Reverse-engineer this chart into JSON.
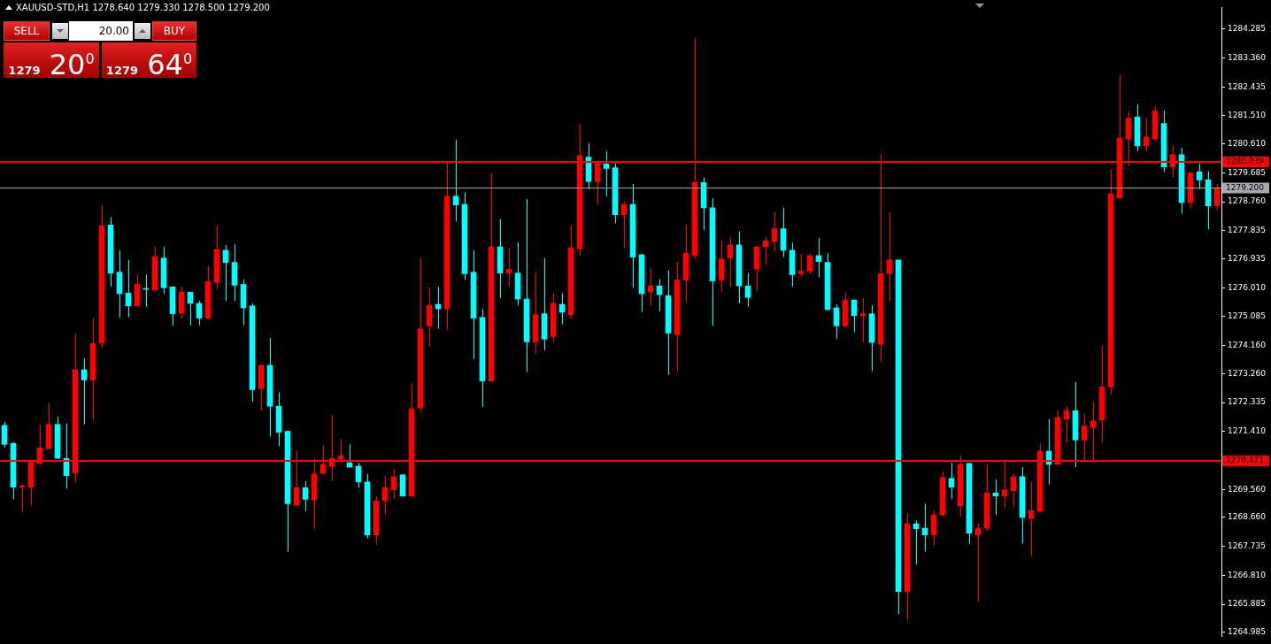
{
  "chart_data": {
    "type": "candlestick",
    "title": "XAUUSD-STD,H1  1278.640 1279.330 1278.500 1279.200",
    "annotations": [
      "SELL",
      "20.00",
      "BUY",
      "1279 20$^{0}$",
      "1279 64$^{0}$"
    ],
    "categories": [
      null,
      null,
      null,
      null,
      null,
      null,
      null,
      null,
      null,
      null,
      null,
      null,
      null,
      null,
      null,
      null,
      null,
      null,
      null,
      null,
      null,
      null,
      null,
      null,
      null,
      null,
      null,
      null,
      null,
      null,
      null,
      null,
      null,
      null,
      null,
      null,
      null,
      null,
      null,
      null,
      null,
      null,
      null,
      null,
      null,
      null,
      null,
      null,
      null,
      null,
      null,
      null,
      null,
      null,
      null,
      null,
      null,
      null,
      null,
      null,
      null,
      null,
      null,
      null,
      null,
      null,
      null,
      null,
      null,
      null,
      null,
      null,
      null,
      null,
      null,
      null,
      null,
      null,
      null,
      null,
      null,
      null,
      null,
      null,
      null,
      null,
      null,
      null,
      null,
      null,
      null,
      null,
      null,
      null,
      null,
      null,
      null,
      null,
      null,
      null,
      null,
      null,
      null,
      null,
      null,
      null,
      null,
      null,
      null,
      null,
      null,
      null,
      null,
      null,
      null,
      null,
      null,
      null,
      null,
      null,
      null,
      null,
      null,
      null,
      null,
      null,
      null,
      null,
      null,
      null,
      null,
      null,
      null,
      null,
      null,
      null,
      null,
      null
    ],
    "ohlc": [
      [
        1271.61,
        1271.72,
        1270.89,
        1271.0
      ],
      [
        1271.03,
        1271.08,
        1269.24,
        1269.63
      ],
      [
        1269.63,
        1269.74,
        1268.83,
        1269.66
      ],
      [
        1269.63,
        1270.5,
        1269.05,
        1270.44
      ],
      [
        1270.39,
        1271.64,
        1270.33,
        1270.89
      ],
      [
        1270.86,
        1272.33,
        1270.86,
        1271.64
      ],
      [
        1271.64,
        1271.89,
        1270.55,
        1270.55
      ],
      [
        1270.55,
        1271.67,
        1269.58,
        1270.0
      ],
      [
        1270.08,
        1274.53,
        1269.77,
        1273.39
      ],
      [
        1273.39,
        1273.75,
        1271.64,
        1273.06
      ],
      [
        1273.06,
        1275.06,
        1271.78,
        1274.23
      ],
      [
        1274.23,
        1278.66,
        1274.09,
        1277.99
      ],
      [
        1278.02,
        1278.27,
        1276.04,
        1276.48
      ],
      [
        1276.51,
        1277.21,
        1275.06,
        1275.82
      ],
      [
        1275.84,
        1276.9,
        1275.06,
        1275.43
      ],
      [
        1275.43,
        1276.43,
        1275.4,
        1276.12
      ],
      [
        1275.98,
        1276.43,
        1275.4,
        1275.96
      ],
      [
        1275.93,
        1277.32,
        1275.93,
        1277.01
      ],
      [
        1276.96,
        1277.32,
        1275.82,
        1276.01
      ],
      [
        1276.04,
        1276.04,
        1274.79,
        1275.18
      ],
      [
        1275.2,
        1276.04,
        1275.01,
        1275.87
      ],
      [
        1275.87,
        1275.87,
        1274.81,
        1275.51
      ],
      [
        1275.51,
        1275.59,
        1274.81,
        1275.04
      ],
      [
        1275.04,
        1276.71,
        1275.01,
        1276.21
      ],
      [
        1276.18,
        1278.02,
        1275.98,
        1277.24
      ],
      [
        1277.21,
        1277.38,
        1275.59,
        1276.82
      ],
      [
        1276.82,
        1277.4,
        1275.59,
        1276.09
      ],
      [
        1276.12,
        1276.29,
        1274.81,
        1275.37
      ],
      [
        1275.43,
        1275.51,
        1272.36,
        1272.75
      ],
      [
        1272.78,
        1273.53,
        1272.08,
        1273.53
      ],
      [
        1273.53,
        1274.4,
        1271.25,
        1272.22
      ],
      [
        1272.22,
        1272.67,
        1270.94,
        1271.39
      ],
      [
        1271.42,
        1271.42,
        1267.57,
        1269.1
      ],
      [
        1269.05,
        1270.8,
        1269.05,
        1269.61
      ],
      [
        1269.61,
        1269.83,
        1268.85,
        1269.24
      ],
      [
        1269.22,
        1270.55,
        1268.3,
        1270.05
      ],
      [
        1270.08,
        1270.97,
        1270.02,
        1270.36
      ],
      [
        1270.3,
        1271.94,
        1269.83,
        1270.55
      ],
      [
        1270.52,
        1271.16,
        1270.47,
        1270.64
      ],
      [
        1270.41,
        1271.0,
        1270.27,
        1270.27
      ],
      [
        1270.3,
        1270.41,
        1269.61,
        1269.8
      ],
      [
        1269.8,
        1270.05,
        1267.99,
        1268.1
      ],
      [
        1268.1,
        1269.35,
        1267.8,
        1269.19
      ],
      [
        1269.19,
        1270.0,
        1268.74,
        1269.61
      ],
      [
        1269.55,
        1270.22,
        1269.24,
        1269.97
      ],
      [
        1270.02,
        1270.05,
        1269.33,
        1269.35
      ],
      [
        1269.35,
        1272.95,
        1269.3,
        1272.14
      ],
      [
        1272.17,
        1276.96,
        1272.03,
        1274.7
      ],
      [
        1274.79,
        1276.01,
        1274.12,
        1275.45
      ],
      [
        1275.48,
        1276.04,
        1274.7,
        1275.34
      ],
      [
        1275.34,
        1280.1,
        1274.65,
        1278.94
      ],
      [
        1278.94,
        1280.75,
        1278.13,
        1278.66
      ],
      [
        1278.68,
        1279.07,
        1276.26,
        1276.46
      ],
      [
        1276.51,
        1277.21,
        1273.73,
        1275.04
      ],
      [
        1275.06,
        1275.34,
        1272.2,
        1273.03
      ],
      [
        1273.03,
        1279.69,
        1273.0,
        1277.32
      ],
      [
        1277.32,
        1278.21,
        1275.68,
        1276.48
      ],
      [
        1276.48,
        1277.29,
        1276.04,
        1276.6
      ],
      [
        1276.48,
        1277.46,
        1275.45,
        1275.65
      ],
      [
        1275.65,
        1278.85,
        1273.31,
        1274.28
      ],
      [
        1274.28,
        1276.51,
        1273.89,
        1275.15
      ],
      [
        1275.18,
        1276.96,
        1274.01,
        1274.37
      ],
      [
        1274.45,
        1275.84,
        1274.28,
        1275.51
      ],
      [
        1275.48,
        1275.84,
        1274.84,
        1275.23
      ],
      [
        1275.15,
        1278.02,
        1275.01,
        1277.29
      ],
      [
        1277.26,
        1281.25,
        1277.04,
        1280.24
      ],
      [
        1280.19,
        1280.63,
        1279.16,
        1279.41
      ],
      [
        1279.41,
        1280.1,
        1278.68,
        1279.97
      ],
      [
        1279.97,
        1280.38,
        1278.94,
        1279.83
      ],
      [
        1279.85,
        1279.99,
        1278.07,
        1278.35
      ],
      [
        1278.35,
        1278.77,
        1277.26,
        1278.68
      ],
      [
        1278.68,
        1279.33,
        1276.01,
        1276.99
      ],
      [
        1277.07,
        1277.1,
        1275.23,
        1275.82
      ],
      [
        1275.87,
        1276.65,
        1275.45,
        1276.07
      ],
      [
        1276.07,
        1276.29,
        1275.26,
        1275.79
      ],
      [
        1275.76,
        1276.57,
        1273.23,
        1274.56
      ],
      [
        1274.51,
        1276.85,
        1273.34,
        1276.26
      ],
      [
        1276.26,
        1278.04,
        1275.54,
        1277.12
      ],
      [
        1277.04,
        1284.0,
        1276.93,
        1279.38
      ],
      [
        1279.38,
        1279.55,
        1277.85,
        1278.57
      ],
      [
        1278.57,
        1278.88,
        1274.79,
        1276.23
      ],
      [
        1276.26,
        1277.54,
        1275.87,
        1276.93
      ],
      [
        1276.96,
        1277.63,
        1276.04,
        1277.38
      ],
      [
        1277.38,
        1277.82,
        1275.51,
        1276.07
      ],
      [
        1276.07,
        1276.48,
        1275.4,
        1275.7
      ],
      [
        1276.6,
        1277.32,
        1275.9,
        1277.32
      ],
      [
        1277.32,
        1277.63,
        1276.74,
        1277.51
      ],
      [
        1277.49,
        1278.43,
        1277.18,
        1277.9
      ],
      [
        1277.9,
        1278.57,
        1276.99,
        1277.21
      ],
      [
        1277.21,
        1277.46,
        1276.04,
        1276.43
      ],
      [
        1276.46,
        1277.1,
        1276.35,
        1276.54
      ],
      [
        1276.54,
        1277.12,
        1276.46,
        1277.04
      ],
      [
        1277.04,
        1277.6,
        1276.35,
        1276.85
      ],
      [
        1276.82,
        1277.12,
        1275.29,
        1275.31
      ],
      [
        1275.37,
        1275.48,
        1274.37,
        1274.79
      ],
      [
        1274.79,
        1275.87,
        1274.76,
        1275.62
      ],
      [
        1275.62,
        1275.62,
        1274.59,
        1275.12
      ],
      [
        1275.12,
        1275.68,
        1274.26,
        1275.18
      ],
      [
        1275.18,
        1275.45,
        1273.34,
        1274.26
      ],
      [
        1274.2,
        1280.3,
        1273.62,
        1276.46
      ],
      [
        1276.46,
        1278.43,
        1275.59,
        1276.9
      ],
      [
        1276.9,
        1276.9,
        1265.57,
        1266.29
      ],
      [
        1266.29,
        1268.8,
        1265.37,
        1268.46
      ],
      [
        1268.46,
        1268.57,
        1267.15,
        1268.3
      ],
      [
        1268.32,
        1269.1,
        1267.57,
        1268.1
      ],
      [
        1268.1,
        1268.88,
        1267.77,
        1268.74
      ],
      [
        1268.74,
        1270.13,
        1268.69,
        1269.94
      ],
      [
        1269.91,
        1270.41,
        1269.24,
        1269.63
      ],
      [
        1269.02,
        1270.64,
        1268.69,
        1270.36
      ],
      [
        1270.39,
        1270.41,
        1267.82,
        1268.16
      ],
      [
        1268.1,
        1268.46,
        1265.96,
        1268.32
      ],
      [
        1268.32,
        1270.39,
        1268.21,
        1269.44
      ],
      [
        1269.44,
        1269.88,
        1268.74,
        1269.35
      ],
      [
        1269.35,
        1270.52,
        1268.96,
        1269.55
      ],
      [
        1269.52,
        1270.05,
        1268.99,
        1269.97
      ],
      [
        1269.97,
        1270.27,
        1267.82,
        1268.66
      ],
      [
        1268.63,
        1269.8,
        1267.41,
        1268.88
      ],
      [
        1268.85,
        1271.03,
        1268.85,
        1270.78
      ],
      [
        1270.78,
        1271.81,
        1269.72,
        1270.36
      ],
      [
        1270.36,
        1272.08,
        1270.36,
        1271.86
      ],
      [
        1271.81,
        1272.22,
        1271.03,
        1272.08
      ],
      [
        1272.08,
        1273.0,
        1270.27,
        1271.14
      ],
      [
        1271.14,
        1271.97,
        1270.5,
        1271.58
      ],
      [
        1271.53,
        1272.36,
        1270.47,
        1271.75
      ],
      [
        1271.78,
        1274.17,
        1271.05,
        1272.84
      ],
      [
        1272.84,
        1279.8,
        1272.61,
        1279.02
      ],
      [
        1278.88,
        1282.81,
        1278.88,
        1280.8
      ],
      [
        1280.77,
        1281.66,
        1279.91,
        1281.44
      ],
      [
        1281.47,
        1281.89,
        1280.38,
        1280.55
      ],
      [
        1280.55,
        1281.44,
        1280.38,
        1280.83
      ],
      [
        1280.77,
        1281.8,
        1280.75,
        1281.66
      ],
      [
        1281.27,
        1281.69,
        1279.71,
        1279.88
      ],
      [
        1279.88,
        1280.55,
        1279.55,
        1280.27
      ],
      [
        1280.27,
        1280.49,
        1278.38,
        1278.74
      ],
      [
        1278.74,
        1279.72,
        1278.55,
        1279.69
      ],
      [
        1279.72,
        1279.99,
        1279.16,
        1279.46
      ],
      [
        1279.46,
        1279.74,
        1277.88,
        1278.63
      ],
      [
        1278.64,
        1279.33,
        1278.5,
        1279.2
      ]
    ],
    "colors": [
      "#00ffff",
      "#00ffff",
      "#ff0000",
      "#ff0000",
      "#ff0000",
      "#ff0000",
      "#00ffff",
      "#00ffff",
      "#ff0000",
      "#00ffff",
      "#ff0000",
      "#ff0000",
      "#00ffff",
      "#00ffff",
      "#00ffff",
      "#ff0000",
      "#00ffff",
      "#ff0000",
      "#00ffff",
      "#00ffff",
      "#ff0000",
      "#00ffff",
      "#00ffff",
      "#ff0000",
      "#ff0000",
      "#00ffff",
      "#00ffff",
      "#00ffff",
      "#00ffff",
      "#ff0000",
      "#00ffff",
      "#00ffff",
      "#00ffff",
      "#ff0000",
      "#00ffff",
      "#ff0000",
      "#ff0000",
      "#ff0000",
      "#ff0000",
      "#00ffff",
      "#00ffff",
      "#00ffff",
      "#ff0000",
      "#ff0000",
      "#ff0000",
      "#00ffff",
      "#ff0000",
      "#ff0000",
      "#ff0000",
      "#00ffff",
      "#ff0000",
      "#00ffff",
      "#00ffff",
      "#00ffff",
      "#00ffff",
      "#ff0000",
      "#00ffff",
      "#ff0000",
      "#00ffff",
      "#00ffff",
      "#ff0000",
      "#00ffff",
      "#ff0000",
      "#00ffff",
      "#ff0000",
      "#ff0000",
      "#00ffff",
      "#ff0000",
      "#00ffff",
      "#00ffff",
      "#ff0000",
      "#00ffff",
      "#00ffff",
      "#ff0000",
      "#00ffff",
      "#00ffff",
      "#ff0000",
      "#ff0000",
      "#ff0000",
      "#00ffff",
      "#00ffff",
      "#ff0000",
      "#ff0000",
      "#00ffff",
      "#00ffff",
      "#ff0000",
      "#ff0000",
      "#ff0000",
      "#00ffff",
      "#00ffff",
      "#ff0000",
      "#ff0000",
      "#00ffff",
      "#00ffff",
      "#00ffff",
      "#ff0000",
      "#00ffff",
      "#ff0000",
      "#00ffff",
      "#ff0000",
      "#ff0000",
      "#00ffff",
      "#ff0000",
      "#00ffff",
      "#00ffff",
      "#ff0000",
      "#ff0000",
      "#00ffff",
      "#ff0000",
      "#00ffff",
      "#ff0000",
      "#ff0000",
      "#00ffff",
      "#ff0000",
      "#ff0000",
      "#00ffff",
      "#ff0000",
      "#ff0000",
      "#00ffff",
      "#ff0000",
      "#ff0000",
      "#00ffff",
      "#ff0000",
      "#ff0000",
      "#ff0000",
      "#ff0000",
      "#ff0000",
      "#ff0000",
      "#00ffff",
      "#ff0000",
      "#ff0000",
      "#00ffff",
      "#ff0000",
      "#00ffff",
      "#ff0000",
      "#00ffff",
      "#00ffff",
      "#ff0000"
    ],
    "ylim": [
      1264.85,
      1284.98
    ],
    "yticks": [
      {
        "value": 1264.985,
        "label": "1264.985"
      },
      {
        "value": 1265.885,
        "label": "1265.885"
      },
      {
        "value": 1266.81,
        "label": "1266.810"
      },
      {
        "value": 1267.735,
        "label": "1267.735"
      },
      {
        "value": 1268.66,
        "label": "1268.660"
      },
      {
        "value": 1269.56,
        "label": "1269.560"
      },
      {
        "value": 1271.41,
        "label": "1271.410"
      },
      {
        "value": 1272.335,
        "label": "1272.335"
      },
      {
        "value": 1273.26,
        "label": "1273.260"
      },
      {
        "value": 1274.16,
        "label": "1274.160"
      },
      {
        "value": 1275.085,
        "label": "1275.085"
      },
      {
        "value": 1276.01,
        "label": "1276.010"
      },
      {
        "value": 1276.935,
        "label": "1276.935"
      },
      {
        "value": 1277.835,
        "label": "1277.835"
      },
      {
        "value": 1278.76,
        "label": "1278.760"
      },
      {
        "value": 1279.685,
        "label": "1279.685"
      },
      {
        "value": 1280.61,
        "label": "1280.610"
      },
      {
        "value": 1281.51,
        "label": "1281.510"
      },
      {
        "value": 1282.435,
        "label": "1282.435"
      },
      {
        "value": 1283.36,
        "label": "1283.360"
      },
      {
        "value": 1284.285,
        "label": "1284.285"
      }
    ],
    "ref_lines": [
      {
        "axis": "y",
        "value": 1280.039,
        "label": "1280.039",
        "color": "#ff0000"
      },
      {
        "axis": "y",
        "value": 1279.2,
        "label": "1279.200",
        "color": "#a8a8b0"
      },
      {
        "axis": "y",
        "value": 1270.471,
        "label": "1270.471",
        "color": "#ff0000"
      }
    ],
    "tick_labels": "y",
    "legend": false
  }
}
